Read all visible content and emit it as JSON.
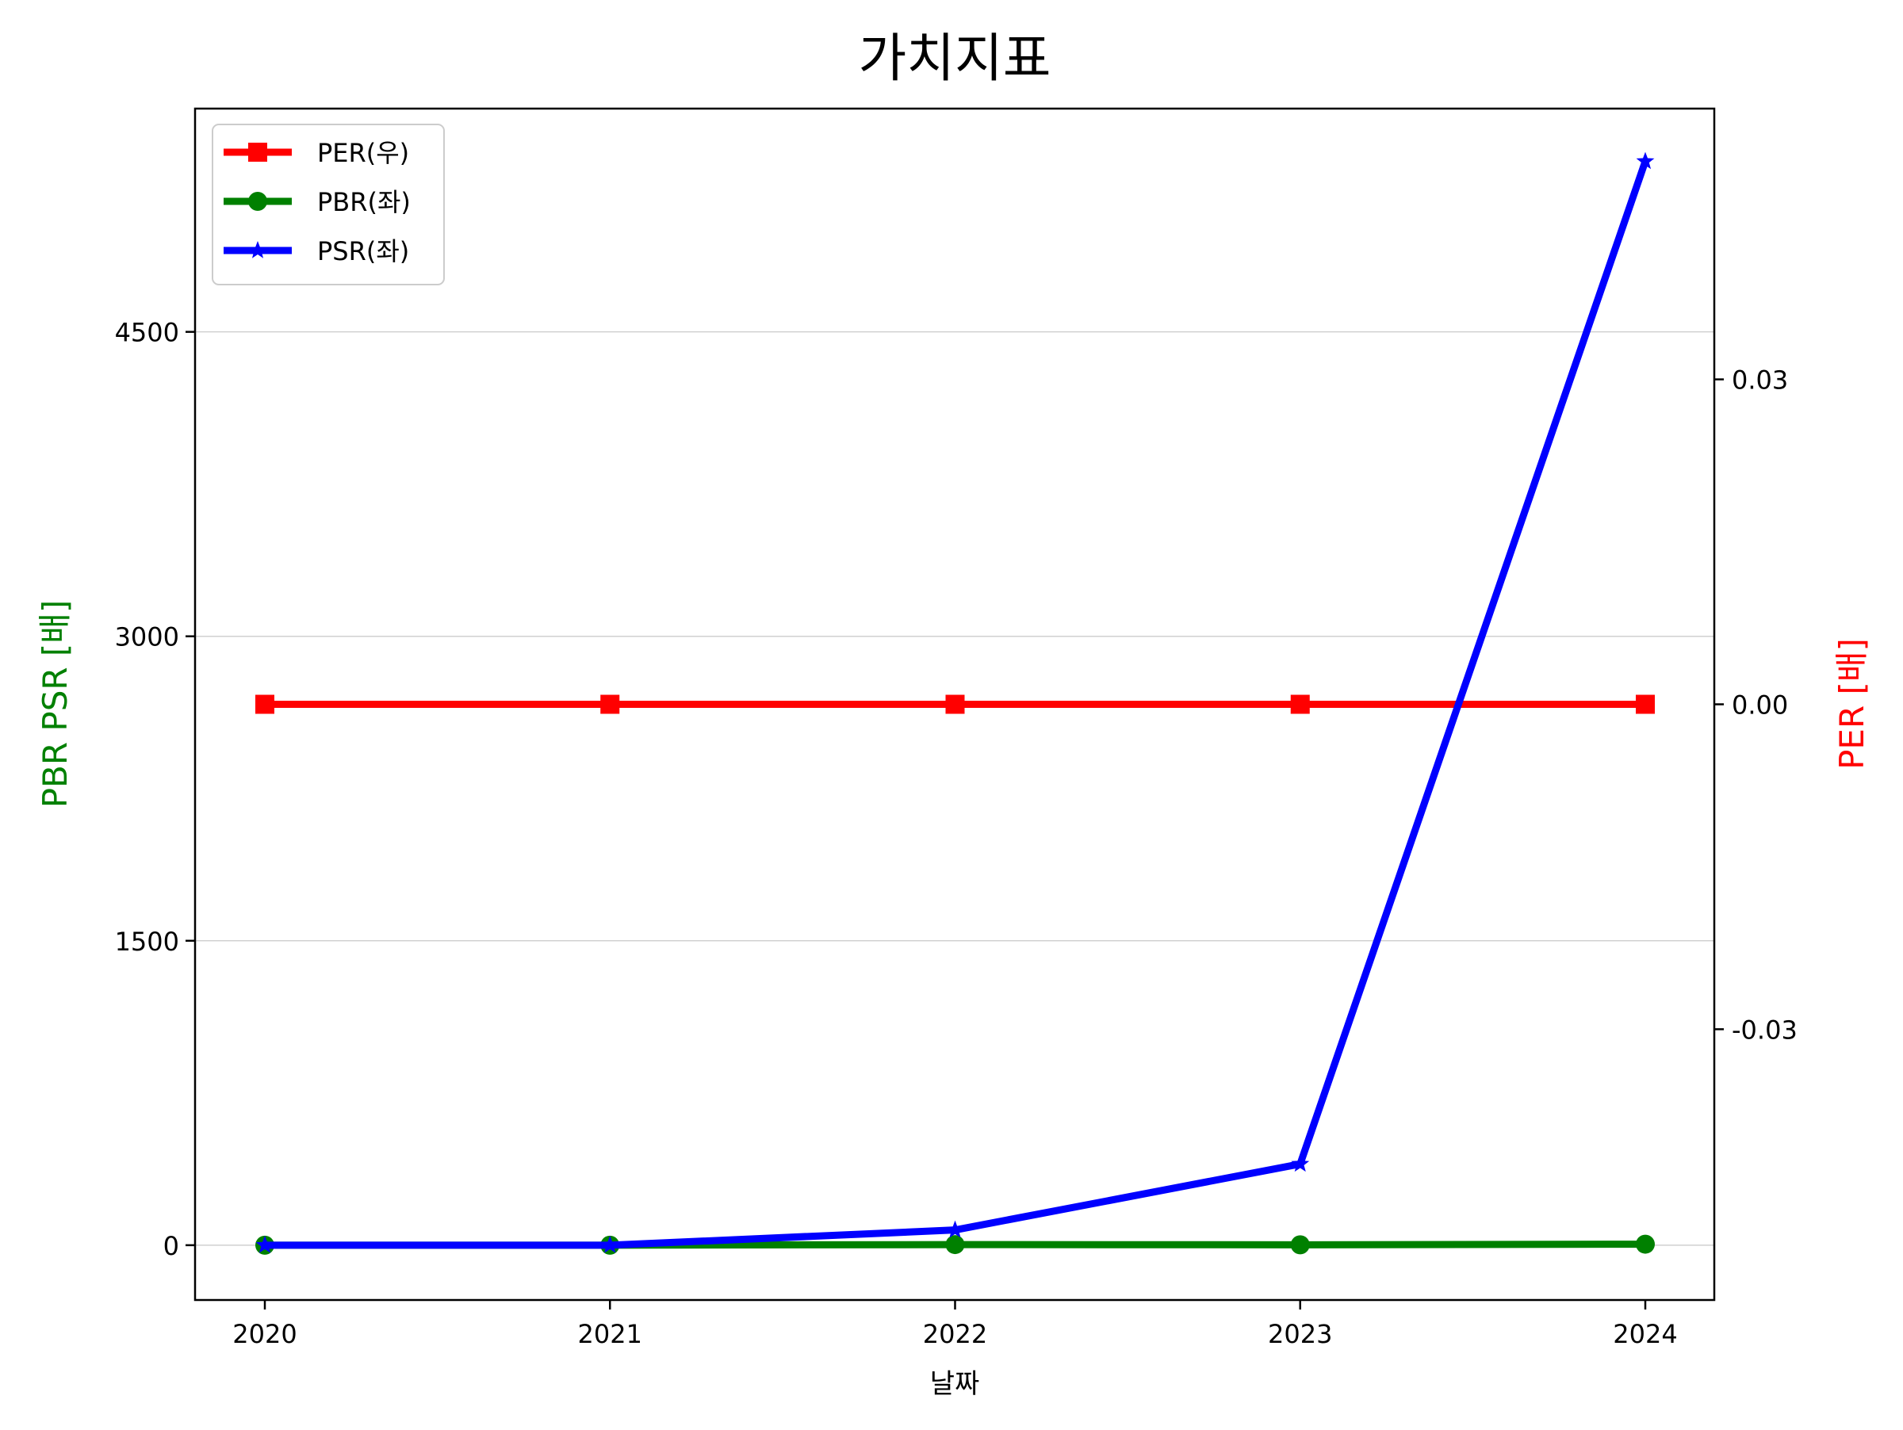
{
  "chart_data": {
    "type": "line",
    "title": "가치지표",
    "xlabel": "날짜",
    "ylabel_left": "PBR PSR [배]",
    "ylabel_right": "PER [배]",
    "categories": [
      "2020",
      "2021",
      "2022",
      "2023",
      "2024"
    ],
    "left_axis": {
      "ylim": [
        -270,
        5600
      ],
      "ticks": [
        0,
        1500,
        3000,
        4500
      ],
      "tick_labels": [
        "0",
        "1500",
        "3000",
        "4500"
      ]
    },
    "right_axis": {
      "ylim": [
        -0.055,
        0.055
      ],
      "ticks": [
        -0.03,
        0.0,
        0.03
      ],
      "tick_labels": [
        "-0.03",
        "0.00",
        "0.03"
      ]
    },
    "grid": true,
    "legend_position": "top-left",
    "series": [
      {
        "name": "PER(우)",
        "axis": "right",
        "color": "#ff0000",
        "marker": "square",
        "values": [
          0,
          0,
          0,
          0,
          0
        ]
      },
      {
        "name": "PBR(좌)",
        "axis": "left",
        "color": "#008000",
        "marker": "circle",
        "values": [
          0,
          0,
          3,
          2,
          5
        ]
      },
      {
        "name": "PSR(좌)",
        "axis": "left",
        "color": "#0000ff",
        "marker": "star",
        "values": [
          0,
          0,
          75,
          400,
          5340
        ]
      }
    ],
    "colors": {
      "left_label": "#008000",
      "right_label": "#ff0000",
      "grid": "#d0d0d0",
      "axis": "#000000"
    }
  }
}
